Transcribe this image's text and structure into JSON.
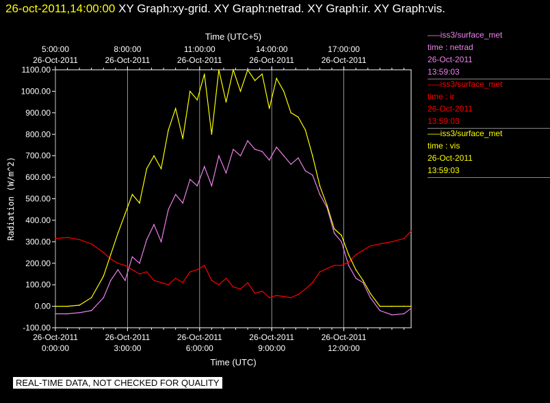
{
  "header": {
    "timestamp": "26-oct-2011,14:00:00",
    "title": "XY Graph:xy-grid.  XY Graph:netrad.  XY Graph:ir.  XY Graph:vis."
  },
  "legend": [
    {
      "series": "—–iss3/surface_met",
      "var": "time : netrad",
      "date": "26-Oct-2011",
      "time": "13:59:03",
      "color": "#ee82ee"
    },
    {
      "series": "—–iss3/surface_met",
      "var": "time : ir",
      "date": "26-Oct-2011",
      "time": "13:59:03",
      "color": "#ff0000"
    },
    {
      "series": "—–iss3/surface_met",
      "var": "time : vis",
      "date": "26-Oct-2011",
      "time": "13:59:03",
      "color": "#ffff00"
    }
  ],
  "footer": {
    "quality_note": "REAL-TIME DATA, NOT CHECKED FOR QUALITY"
  },
  "chart_data": {
    "type": "line",
    "ylabel": "Radiation  (W/m^2)",
    "xlabel_bottom": "Time (UTC)",
    "xlabel_top": "Time (UTC+5)",
    "ylim": [
      -100,
      1100
    ],
    "yticks": [
      "-100.00",
      "0.00",
      "100.00",
      "200.00",
      "300.00",
      "400.00",
      "500.00",
      "600.00",
      "700.00",
      "800.00",
      "900.00",
      "1000.00",
      "1100.00"
    ],
    "xlim_hours_utc": [
      0,
      14.8
    ],
    "xticks_bottom": [
      {
        "h": 0,
        "date": "26-Oct-2011",
        "time": "0:00:00"
      },
      {
        "h": 3,
        "date": "26-Oct-2011",
        "time": "3:00:00"
      },
      {
        "h": 6,
        "date": "26-Oct-2011",
        "time": "6:00:00"
      },
      {
        "h": 9,
        "date": "26-Oct-2011",
        "time": "9:00:00"
      },
      {
        "h": 12,
        "date": "26-Oct-2011",
        "time": "12:00:00"
      }
    ],
    "xticks_top": [
      {
        "h": 0,
        "date": "26-Oct-2011",
        "time": "5:00:00"
      },
      {
        "h": 3,
        "date": "26-Oct-2011",
        "time": "8:00:00"
      },
      {
        "h": 6,
        "date": "26-Oct-2011",
        "time": "11:00:00"
      },
      {
        "h": 9,
        "date": "26-Oct-2011",
        "time": "14:00:00"
      },
      {
        "h": 12,
        "date": "26-Oct-2011",
        "time": "17:00:00"
      }
    ],
    "grid": true,
    "series": [
      {
        "name": "netrad",
        "color": "#ee82ee",
        "x": [
          0,
          0.5,
          1,
          1.5,
          2,
          2.3,
          2.6,
          2.9,
          3.2,
          3.5,
          3.8,
          4.1,
          4.4,
          4.7,
          5,
          5.3,
          5.6,
          5.9,
          6.2,
          6.5,
          6.8,
          7.1,
          7.4,
          7.7,
          8,
          8.3,
          8.6,
          8.9,
          9.2,
          9.5,
          9.8,
          10.1,
          10.4,
          10.7,
          11,
          11.3,
          11.6,
          11.9,
          12.2,
          12.5,
          12.8,
          13.1,
          13.5,
          14,
          14.5,
          14.8
        ],
        "y": [
          -35,
          -35,
          -30,
          -20,
          40,
          120,
          170,
          120,
          230,
          200,
          310,
          380,
          300,
          450,
          520,
          480,
          590,
          560,
          650,
          560,
          700,
          620,
          730,
          700,
          770,
          730,
          720,
          680,
          740,
          700,
          660,
          690,
          630,
          610,
          520,
          460,
          340,
          300,
          190,
          130,
          110,
          40,
          -20,
          -40,
          -35,
          -10
        ]
      },
      {
        "name": "ir",
        "color": "#ff0000",
        "x": [
          0,
          0.5,
          1,
          1.5,
          2,
          2.3,
          2.6,
          2.9,
          3.2,
          3.5,
          3.8,
          4.1,
          4.4,
          4.7,
          5,
          5.3,
          5.6,
          5.9,
          6.2,
          6.5,
          6.8,
          7.1,
          7.4,
          7.7,
          8,
          8.3,
          8.6,
          8.9,
          9.2,
          9.5,
          9.8,
          10.1,
          10.4,
          10.7,
          11,
          11.3,
          11.6,
          11.9,
          12.2,
          12.5,
          12.8,
          13.1,
          13.5,
          14,
          14.5,
          14.8
        ],
        "y": [
          315,
          320,
          310,
          290,
          250,
          220,
          200,
          190,
          170,
          150,
          160,
          120,
          110,
          100,
          130,
          110,
          160,
          170,
          190,
          120,
          100,
          130,
          90,
          80,
          110,
          60,
          70,
          40,
          50,
          45,
          40,
          55,
          80,
          110,
          160,
          175,
          190,
          190,
          205,
          240,
          260,
          280,
          290,
          300,
          315,
          350
        ]
      },
      {
        "name": "vis",
        "color": "#ffff00",
        "x": [
          0,
          0.5,
          1,
          1.5,
          2,
          2.3,
          2.6,
          2.9,
          3.2,
          3.5,
          3.8,
          4.1,
          4.4,
          4.7,
          5,
          5.3,
          5.6,
          5.9,
          6.2,
          6.5,
          6.8,
          7.1,
          7.4,
          7.7,
          8,
          8.3,
          8.6,
          8.9,
          9.2,
          9.5,
          9.8,
          10.1,
          10.4,
          10.7,
          11,
          11.3,
          11.6,
          11.9,
          12.2,
          12.5,
          12.8,
          13.1,
          13.5,
          14,
          14.5,
          14.8
        ],
        "y": [
          0,
          0,
          5,
          40,
          140,
          240,
          340,
          430,
          520,
          480,
          640,
          700,
          640,
          820,
          920,
          780,
          1000,
          960,
          1080,
          800,
          1100,
          950,
          1100,
          1000,
          1100,
          1050,
          1080,
          920,
          1060,
          1000,
          900,
          880,
          820,
          700,
          560,
          470,
          360,
          330,
          240,
          170,
          120,
          60,
          0,
          0,
          0,
          0
        ]
      }
    ]
  }
}
